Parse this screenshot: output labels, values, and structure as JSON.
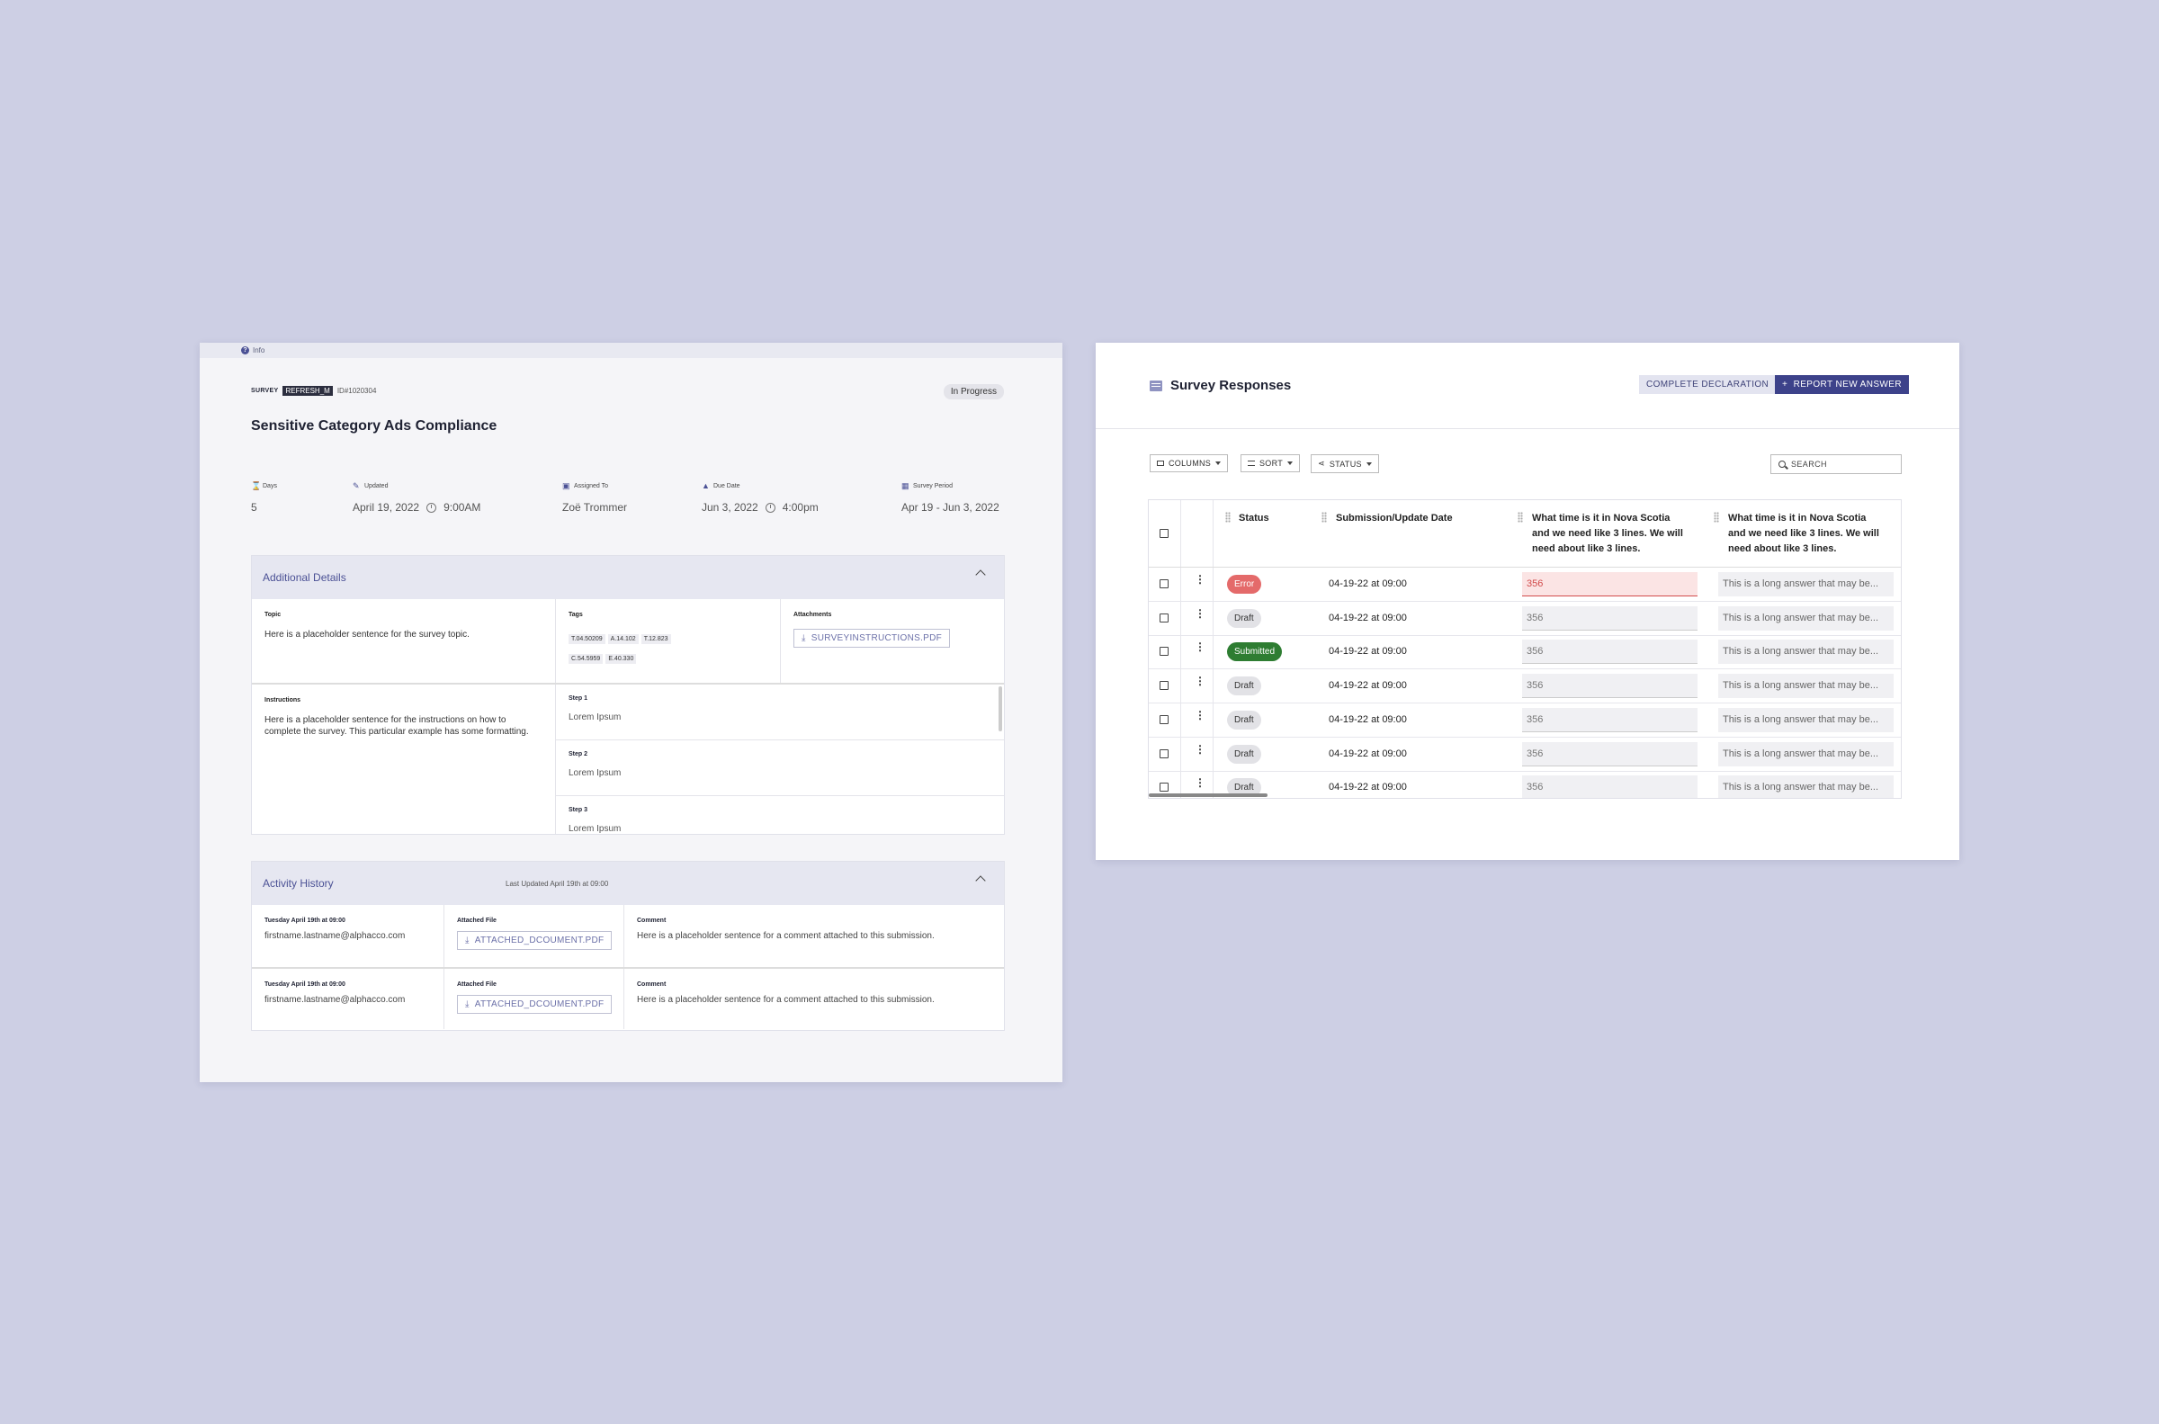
{
  "left": {
    "info_label": "Info",
    "survey_label": "SURVEY",
    "refresh_label": "REFRESH_M",
    "id_text": "ID#1020304",
    "status": "In Progress",
    "title": "Sensitive Category Ads Compliance",
    "meta": [
      {
        "label": "Days",
        "value": "5",
        "time": ""
      },
      {
        "label": "Updated",
        "value": "April 19, 2022",
        "time": "9:00AM"
      },
      {
        "label": "Assigned To",
        "value": "Zoë Trommer",
        "time": ""
      },
      {
        "label": "Due Date",
        "value": "Jun 3, 2022",
        "time": "4:00pm"
      },
      {
        "label": "Survey Period",
        "value": "Apr 19 - Jun 3, 2022",
        "time": ""
      }
    ],
    "additional": {
      "title": "Additional Details",
      "topic_label": "Topic",
      "topic_text": "Here is a placeholder sentence for the survey topic.",
      "tags_label": "Tags",
      "tags": [
        "T.04.50209",
        "A.14.102",
        "T.12.823",
        "C.54.5959",
        "E.40.330"
      ],
      "attachments_label": "Attachments",
      "attachment_file": "SURVEYINSTRUCTIONS.PDF",
      "instructions_label": "Instructions",
      "instructions_text": "Here is a placeholder sentence for the instructions on how to complete the survey. This particular example has some formatting.",
      "steps": [
        {
          "label": "Step 1",
          "text": "Lorem Ipsum"
        },
        {
          "label": "Step 2",
          "text": "Lorem Ipsum"
        },
        {
          "label": "Step 3",
          "text": "Lorem Ipsum"
        }
      ]
    },
    "activity": {
      "title": "Activity History",
      "last_updated": "Last Updated April 19th at 09:00",
      "rows": [
        {
          "date": "Tuesday April 19th at 09:00",
          "email": "firstname.lastname@alphacco.com",
          "file_label": "Attached File",
          "file": "ATTACHED_DCOUMENT.PDF",
          "comment_label": "Comment",
          "comment": "Here is a placeholder sentence for a comment attached to this submission."
        },
        {
          "date": "Tuesday April 19th at 09:00",
          "email": "firstname.lastname@alphacco.com",
          "file_label": "Attached File",
          "file": "ATTACHED_DCOUMENT.PDF",
          "comment_label": "Comment",
          "comment": "Here is a placeholder sentence for a comment attached to this submission."
        }
      ]
    }
  },
  "right": {
    "title": "Survey Responses",
    "complete_btn": "COMPLETE DECLARATION",
    "report_btn": "REPORT NEW ANSWER",
    "report_btn_icon": "+",
    "toolbar": {
      "columns": "COLUMNS",
      "sort": "SORT",
      "status": "STATUS",
      "search_placeholder": "SEARCH"
    },
    "columns": [
      "Status",
      "Submission/Update Date",
      "What time is it in Nova Scotia and we need like 3 lines. We will need about like 3 lines.",
      "What time is it in Nova Scotia and we need like 3 lines. We will need about like 3 lines."
    ],
    "rows": [
      {
        "status": "Error",
        "kind": "err",
        "date": "04-19-22 at 09:00",
        "num": "356",
        "long": "This is a long answer that may be..."
      },
      {
        "status": "Draft",
        "kind": "draft",
        "date": "04-19-22 at 09:00",
        "num": "356",
        "long": "This is a long answer that may be..."
      },
      {
        "status": "Submitted",
        "kind": "sub",
        "date": "04-19-22 at 09:00",
        "num": "356",
        "long": "This is a long answer that may be..."
      },
      {
        "status": "Draft",
        "kind": "draft",
        "date": "04-19-22 at 09:00",
        "num": "356",
        "long": "This is a long answer that may be..."
      },
      {
        "status": "Draft",
        "kind": "draft",
        "date": "04-19-22 at 09:00",
        "num": "356",
        "long": "This is a long answer that may be..."
      },
      {
        "status": "Draft",
        "kind": "draft",
        "date": "04-19-22 at 09:00",
        "num": "356",
        "long": "This is a long answer that may be..."
      },
      {
        "status": "Draft",
        "kind": "draft",
        "date": "04-19-22 at 09:00",
        "num": "356",
        "long": "This is a long answer that may be..."
      }
    ]
  },
  "colors": {
    "accent": "#3d428a",
    "error": "#e46a6a",
    "success": "#2e7d32",
    "background": "#cdcfe4"
  }
}
